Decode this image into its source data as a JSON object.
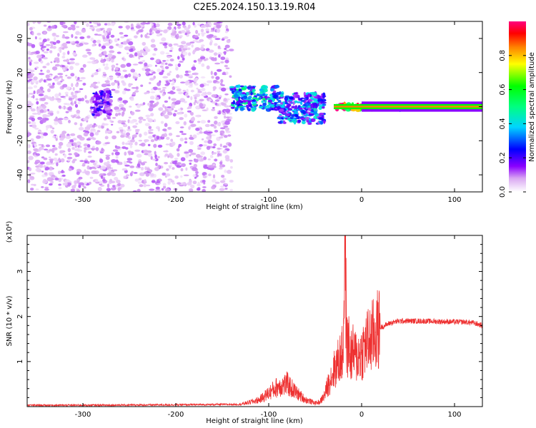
{
  "title": "C2E5.2024.150.13.19.R04",
  "chart_data": [
    {
      "type": "heatmap",
      "title": "C2E5.2024.150.13.19.R04",
      "xlabel": "Height of straight line (km)",
      "ylabel": "Frequency (Hz)",
      "xlim": [
        -360,
        130
      ],
      "ylim": [
        -50,
        50
      ],
      "x_ticks": [
        -300,
        -200,
        -100,
        0,
        100
      ],
      "x_tick_labels": [
        "-300",
        "-200",
        "-100",
        "0",
        "100"
      ],
      "y_ticks": [
        -40,
        -20,
        0,
        20,
        40
      ],
      "y_tick_labels": [
        "-40",
        "-20",
        "0",
        "20",
        "40"
      ],
      "colorbar": {
        "label": "Normalized spectral amplitude",
        "range": [
          0,
          1
        ],
        "ticks": [
          0.0,
          0.2,
          0.4,
          0.6,
          0.8
        ],
        "tick_labels": [
          "0.0",
          "0.2",
          "0.4",
          "0.6",
          "0.8"
        ],
        "colormap": [
          "#ffffff",
          "#d9a6f2",
          "#8a00ff",
          "#0000ff",
          "#00d5ff",
          "#00ff80",
          "#00ff00",
          "#ffff00",
          "#ff8000",
          "#ff0000",
          "#ff0080"
        ]
      },
      "regions": [
        {
          "x_range": [
            -360,
            -140
          ],
          "freq_range": [
            -50,
            50
          ],
          "amplitude": 0.05,
          "description_level": "scattered noise"
        },
        {
          "x_range": [
            -290,
            -270
          ],
          "freq_range": [
            -5,
            10
          ],
          "amplitude": 0.2
        },
        {
          "x_range": [
            -140,
            -90
          ],
          "freq_range": [
            -2,
            12
          ],
          "amplitude": 0.35
        },
        {
          "x_range": [
            -90,
            -40
          ],
          "freq_range": [
            -10,
            8
          ],
          "amplitude": 0.3
        },
        {
          "x_range": [
            -30,
            0
          ],
          "freq_range": [
            -2,
            2
          ],
          "amplitude": 0.9
        },
        {
          "x_range": [
            0,
            130
          ],
          "freq_range": [
            -2,
            2
          ],
          "amplitude": 0.75
        }
      ],
      "grid": false
    },
    {
      "type": "line",
      "xlabel": "Height of straight line (km)",
      "ylabel": "SNR (10 * v/v)",
      "y_multiplier": "(x10⁴)",
      "xlim": [
        -360,
        130
      ],
      "ylim": [
        0,
        38000
      ],
      "x_ticks": [
        -300,
        -200,
        -100,
        0,
        100
      ],
      "x_tick_labels": [
        "-300",
        "-200",
        "-100",
        "0",
        "100"
      ],
      "y_ticks": [
        10000,
        20000,
        30000
      ],
      "y_tick_labels": [
        "1",
        "2",
        "3"
      ],
      "series": [
        {
          "color": "#ee3030",
          "x": [
            -360,
            -300,
            -200,
            -130,
            -120,
            -110,
            -100,
            -90,
            -80,
            -70,
            -60,
            -50,
            -45,
            -40,
            -35,
            -30,
            -25,
            -20,
            -18,
            -16,
            -14,
            -12,
            -10,
            -5,
            0,
            5,
            10,
            15,
            20,
            30,
            40,
            50,
            60,
            80,
            100,
            110,
            120,
            130
          ],
          "y": [
            300,
            300,
            400,
            500,
            1000,
            1500,
            3000,
            4500,
            5000,
            3000,
            1500,
            800,
            1000,
            2500,
            5500,
            8000,
            10000,
            12000,
            38000,
            13000,
            14000,
            11000,
            12000,
            11000,
            12000,
            14000,
            15000,
            16500,
            17500,
            18500,
            19000,
            19000,
            19000,
            18900,
            18800,
            18800,
            18600,
            18000
          ]
        }
      ],
      "grid": false
    }
  ]
}
